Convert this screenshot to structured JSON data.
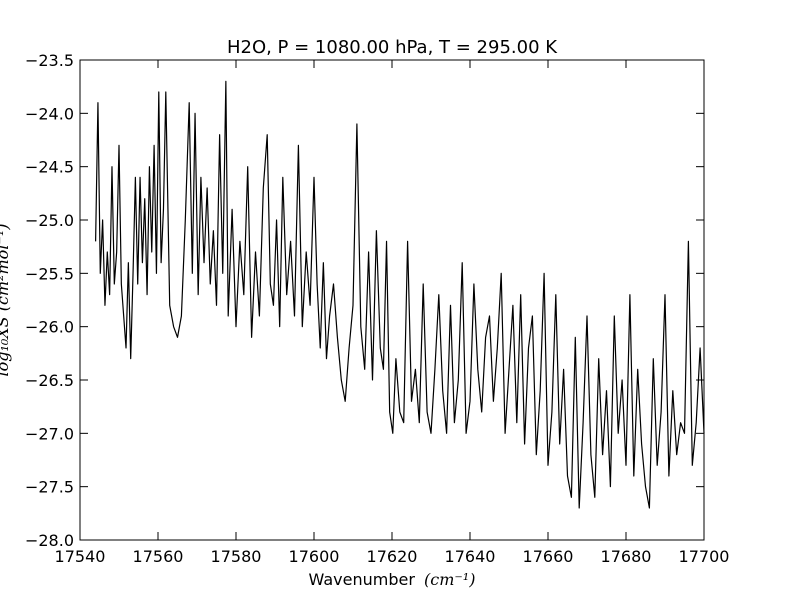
{
  "chart_data": {
    "type": "line",
    "title": "H2O, P = 1080.00 hPa, T = 295.00 K",
    "xlabel": "Wavenumber (cm⁻¹)",
    "xlabel_text": "Wavenumber",
    "xlabel_unit": "(cm⁻¹)",
    "ylabel": "log₁₀XS (cm²mol⁻¹)",
    "ylabel_text": "log₁₀XS (cm²mol⁻¹)",
    "xlim": [
      17540,
      17700
    ],
    "ylim": [
      -28.0,
      -23.5
    ],
    "xticks": [
      17540,
      17560,
      17580,
      17600,
      17620,
      17640,
      17660,
      17680,
      17700
    ],
    "yticks": [
      -23.5,
      -24.0,
      -24.5,
      -25.0,
      -25.5,
      -26.0,
      -26.5,
      -27.0,
      -27.5,
      -28.0
    ],
    "grid": false,
    "series": [
      {
        "color": "#000000",
        "x": [
          17544.0,
          17544.6,
          17545.2,
          17545.8,
          17546.4,
          17547.0,
          17547.6,
          17548.2,
          17548.8,
          17549.4,
          17550.0,
          17550.6,
          17551.2,
          17551.8,
          17552.4,
          17553.0,
          17553.6,
          17554.2,
          17554.8,
          17555.4,
          17556.0,
          17556.6,
          17557.2,
          17557.8,
          17558.4,
          17559.0,
          17559.6,
          17560.2,
          17560.8,
          17561.4,
          17562.0,
          17563.0,
          17564.0,
          17565.0,
          17566.0,
          17567.0,
          17568.0,
          17568.8,
          17569.5,
          17570.3,
          17571.0,
          17571.8,
          17572.6,
          17573.4,
          17574.2,
          17575.0,
          17575.8,
          17576.6,
          17577.4,
          17578.0,
          17579.0,
          17580.0,
          17581.0,
          17582.0,
          17583.0,
          17584.0,
          17585.0,
          17586.0,
          17587.0,
          17588.0,
          17588.8,
          17589.6,
          17590.4,
          17591.2,
          17592.0,
          17593.0,
          17594.0,
          17595.0,
          17596.0,
          17597.0,
          17598.0,
          17599.0,
          17600.0,
          17600.8,
          17601.6,
          17602.4,
          17603.2,
          17604.0,
          17605.0,
          17606.0,
          17607.0,
          17608.0,
          17609.0,
          17610.0,
          17611.0,
          17612.0,
          17613.0,
          17614.0,
          17615.0,
          17616.0,
          17617.0,
          17617.8,
          17618.6,
          17619.4,
          17620.2,
          17621.0,
          17622.0,
          17623.0,
          17624.0,
          17625.0,
          17626.0,
          17627.0,
          17628.0,
          17629.0,
          17630.0,
          17631.0,
          17632.0,
          17633.0,
          17634.0,
          17635.0,
          17636.0,
          17637.0,
          17638.0,
          17639.0,
          17640.0,
          17641.0,
          17642.0,
          17643.0,
          17644.0,
          17645.0,
          17646.0,
          17647.0,
          17648.0,
          17649.0,
          17650.0,
          17651.0,
          17652.0,
          17653.0,
          17654.0,
          17655.0,
          17656.0,
          17657.0,
          17658.0,
          17659.0,
          17660.0,
          17661.0,
          17662.0,
          17663.0,
          17664.0,
          17665.0,
          17666.0,
          17667.0,
          17668.0,
          17669.0,
          17670.0,
          17671.0,
          17672.0,
          17673.0,
          17674.0,
          17675.0,
          17676.0,
          17677.0,
          17678.0,
          17679.0,
          17680.0,
          17681.0,
          17682.0,
          17683.0,
          17684.0,
          17685.0,
          17686.0,
          17687.0,
          17688.0,
          17689.0,
          17690.0,
          17691.0,
          17692.0,
          17693.0,
          17694.0,
          17695.0,
          17696.0,
          17697.0,
          17698.0,
          17699.0,
          17700.0
        ],
        "y": [
          -25.2,
          -23.9,
          -25.5,
          -25.0,
          -25.8,
          -25.3,
          -25.7,
          -24.5,
          -25.6,
          -25.3,
          -24.3,
          -25.6,
          -25.9,
          -26.2,
          -25.4,
          -26.3,
          -25.5,
          -24.6,
          -25.6,
          -24.6,
          -25.4,
          -24.8,
          -25.7,
          -24.5,
          -25.3,
          -24.3,
          -25.5,
          -23.8,
          -25.4,
          -24.9,
          -23.8,
          -25.8,
          -26.0,
          -26.1,
          -25.9,
          -25.0,
          -23.9,
          -25.5,
          -24.0,
          -25.7,
          -24.6,
          -25.4,
          -24.7,
          -25.6,
          -25.1,
          -25.8,
          -24.2,
          -25.5,
          -23.7,
          -25.9,
          -24.9,
          -26.0,
          -25.2,
          -25.7,
          -24.5,
          -26.1,
          -25.3,
          -25.9,
          -24.7,
          -24.2,
          -25.6,
          -25.8,
          -25.0,
          -26.0,
          -24.6,
          -25.7,
          -25.2,
          -25.9,
          -24.3,
          -26.0,
          -25.3,
          -25.8,
          -24.6,
          -25.6,
          -26.2,
          -25.4,
          -26.3,
          -25.9,
          -25.6,
          -26.1,
          -26.5,
          -26.7,
          -26.2,
          -25.8,
          -24.1,
          -26.0,
          -26.4,
          -25.3,
          -26.5,
          -25.1,
          -26.2,
          -26.4,
          -25.2,
          -26.8,
          -27.0,
          -26.3,
          -26.8,
          -26.9,
          -25.2,
          -26.7,
          -26.4,
          -26.9,
          -25.6,
          -26.8,
          -27.0,
          -26.4,
          -25.7,
          -26.6,
          -27.0,
          -25.8,
          -26.9,
          -26.5,
          -25.4,
          -27.0,
          -26.7,
          -25.6,
          -26.4,
          -26.8,
          -26.1,
          -25.9,
          -26.7,
          -26.2,
          -25.5,
          -27.0,
          -26.4,
          -25.8,
          -26.9,
          -25.7,
          -27.1,
          -26.2,
          -25.9,
          -27.2,
          -26.6,
          -25.5,
          -27.3,
          -26.8,
          -25.7,
          -27.1,
          -26.4,
          -27.4,
          -27.6,
          -26.1,
          -27.7,
          -26.9,
          -25.9,
          -27.2,
          -27.6,
          -26.3,
          -27.2,
          -26.6,
          -27.5,
          -25.9,
          -27.0,
          -26.5,
          -27.3,
          -25.7,
          -27.4,
          -26.4,
          -27.1,
          -27.5,
          -27.7,
          -26.3,
          -27.3,
          -26.8,
          -25.7,
          -27.4,
          -26.6,
          -27.2,
          -26.9,
          -27.0,
          -25.2,
          -27.3,
          -26.9,
          -26.2,
          -27.0
        ]
      }
    ]
  }
}
